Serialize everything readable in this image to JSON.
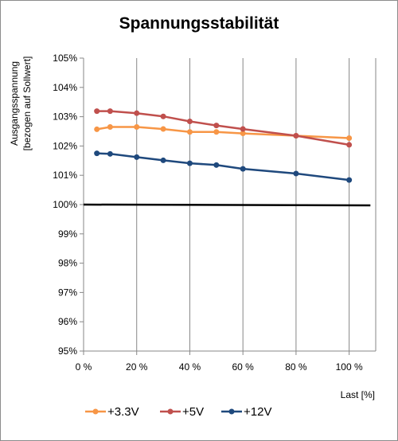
{
  "chart_data": {
    "type": "line",
    "title": "Spannungsstabilität",
    "ylabel_line1": "Ausgangsspannung",
    "ylabel_line2": "[bezogen auf Sollwert]",
    "xlabel": "Last [%]",
    "x_ticks": [
      {
        "value": 0,
        "label": "0 %"
      },
      {
        "value": 20,
        "label": "20 %"
      },
      {
        "value": 40,
        "label": "40 %"
      },
      {
        "value": 60,
        "label": "60 %"
      },
      {
        "value": 80,
        "label": "80 %"
      },
      {
        "value": 100,
        "label": "100 %"
      }
    ],
    "xlim": [
      0,
      110
    ],
    "y_ticks": [
      {
        "value": 95,
        "label": "95%"
      },
      {
        "value": 96,
        "label": "96%"
      },
      {
        "value": 97,
        "label": "97%"
      },
      {
        "value": 98,
        "label": "98%"
      },
      {
        "value": 99,
        "label": "99%"
      },
      {
        "value": 100,
        "label": "100%"
      },
      {
        "value": 101,
        "label": "101%"
      },
      {
        "value": 102,
        "label": "102%"
      },
      {
        "value": 103,
        "label": "103%"
      },
      {
        "value": 104,
        "label": "104%"
      },
      {
        "value": 105,
        "label": "105%"
      }
    ],
    "ylim": [
      95,
      105
    ],
    "grid": "vertical",
    "legend": "bottom",
    "reference_line": {
      "y": 100,
      "color": "#000000"
    },
    "series": [
      {
        "name": "+3.3V",
        "color": "#f79646",
        "points": [
          [
            5,
            102.57
          ],
          [
            10,
            102.65
          ],
          [
            20,
            102.65
          ],
          [
            30,
            102.58
          ],
          [
            40,
            102.48
          ],
          [
            50,
            102.48
          ],
          [
            60,
            102.43
          ],
          [
            80,
            102.35
          ],
          [
            100,
            102.27
          ]
        ]
      },
      {
        "name": "+5V",
        "color": "#c0504d",
        "points": [
          [
            5,
            103.19
          ],
          [
            10,
            103.19
          ],
          [
            20,
            103.12
          ],
          [
            30,
            103.01
          ],
          [
            40,
            102.84
          ],
          [
            50,
            102.7
          ],
          [
            60,
            102.58
          ],
          [
            80,
            102.35
          ],
          [
            100,
            102.04
          ]
        ]
      },
      {
        "name": "+12V",
        "color": "#1f497d",
        "points": [
          [
            5,
            101.75
          ],
          [
            10,
            101.73
          ],
          [
            20,
            101.62
          ],
          [
            30,
            101.51
          ],
          [
            40,
            101.41
          ],
          [
            50,
            101.35
          ],
          [
            60,
            101.22
          ],
          [
            80,
            101.06
          ],
          [
            100,
            100.84
          ]
        ]
      }
    ]
  }
}
